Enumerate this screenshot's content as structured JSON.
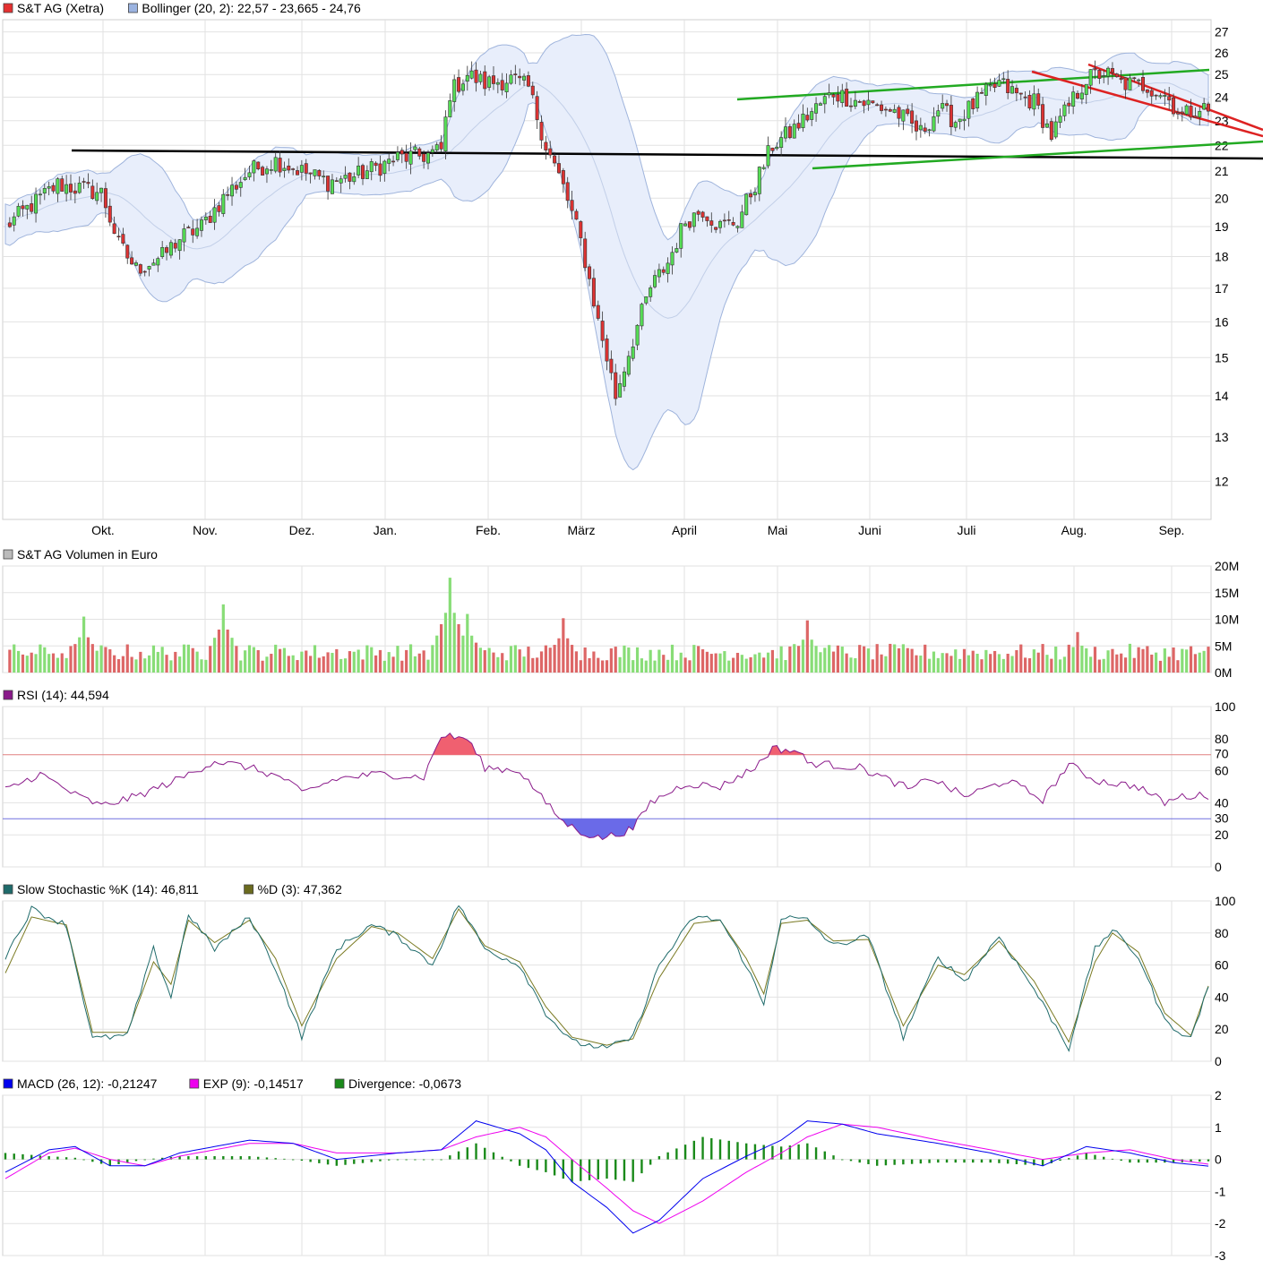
{
  "panels": {
    "price": {
      "legend": [
        {
          "color": "#e53030",
          "text": "S&T AG (Xetra)"
        },
        {
          "color": "#9bb3e0",
          "text": "Bollinger (20, 2): 22,57 - 23,665 - 24,76"
        }
      ],
      "y_ticks": [
        "27",
        "26",
        "25",
        "24",
        "23",
        "22",
        "21",
        "20",
        "19",
        "18",
        "17",
        "16",
        "15",
        "14",
        "13",
        "12"
      ],
      "x_ticks": [
        "Okt.",
        "Nov.",
        "Dez.",
        "Jan.",
        "Feb.",
        "März",
        "April",
        "Mai",
        "Juni",
        "Juli",
        "Aug.",
        "Sep."
      ]
    },
    "volume": {
      "legend": [
        {
          "color": "#bbbbbb",
          "text": "S&T AG Volumen in Euro"
        }
      ],
      "y_ticks": [
        "20M",
        "15M",
        "10M",
        "5M",
        "0M"
      ]
    },
    "rsi": {
      "legend": [
        {
          "color": "#8a1a8a",
          "text": "RSI (14): 44,594"
        }
      ],
      "y_ticks": [
        "100",
        "80",
        "60",
        "40",
        "20",
        "0"
      ],
      "ref_labels": [
        "70",
        "30"
      ]
    },
    "stoch": {
      "legend": [
        {
          "color": "#1f6b6b",
          "text": "Slow Stochastic %K (14): 46,811"
        },
        {
          "color": "#6b6b1f",
          "text": "%D (3): 47,362"
        }
      ],
      "y_ticks": [
        "100",
        "80",
        "60",
        "40",
        "20",
        "0"
      ]
    },
    "macd": {
      "legend": [
        {
          "color": "#0000ee",
          "text": "MACD (26, 12): -0,21247"
        },
        {
          "color": "#ee00ee",
          "text": "EXP (9): -0,14517"
        },
        {
          "color": "#1a8a1a",
          "text": "Divergence: -0,0673"
        }
      ],
      "y_ticks": [
        "2",
        "1",
        "0",
        "-1",
        "-2",
        "-3"
      ]
    }
  },
  "chart_data": [
    {
      "type": "candlestick",
      "title": "S&T AG (Xetra)",
      "categories": [
        "Okt.",
        "Nov.",
        "Dez.",
        "Jan.",
        "Feb.",
        "März",
        "April",
        "Mai",
        "Juni",
        "Juli",
        "Aug.",
        "Sep."
      ],
      "close_path": [
        [
          0,
          19.0
        ],
        [
          12,
          20.5
        ],
        [
          22,
          20.2
        ],
        [
          26,
          18.4
        ],
        [
          30,
          17.6
        ],
        [
          36,
          18.0
        ],
        [
          40,
          18.6
        ],
        [
          45,
          19.0
        ],
        [
          50,
          20.0
        ],
        [
          56,
          21.0
        ],
        [
          62,
          21.4
        ],
        [
          68,
          21.0
        ],
        [
          74,
          20.6
        ],
        [
          80,
          20.8
        ],
        [
          86,
          21.2
        ],
        [
          90,
          21.5
        ],
        [
          96,
          21.6
        ],
        [
          100,
          21.8
        ],
        [
          102,
          24.2
        ],
        [
          106,
          25.0
        ],
        [
          110,
          24.6
        ],
        [
          116,
          24.8
        ],
        [
          120,
          24.4
        ],
        [
          124,
          22.0
        ],
        [
          128,
          20.4
        ],
        [
          132,
          18.5
        ],
        [
          136,
          16.0
        ],
        [
          140,
          14.0
        ],
        [
          144,
          15.5
        ],
        [
          148,
          17.0
        ],
        [
          152,
          17.8
        ],
        [
          156,
          19.2
        ],
        [
          160,
          19.6
        ],
        [
          164,
          19.0
        ],
        [
          168,
          19.2
        ],
        [
          172,
          20.5
        ],
        [
          176,
          22.0
        ],
        [
          180,
          22.5
        ],
        [
          184,
          23.2
        ],
        [
          190,
          24.2
        ],
        [
          196,
          23.8
        ],
        [
          204,
          23.4
        ],
        [
          210,
          22.5
        ],
        [
          214,
          23.5
        ],
        [
          218,
          23.0
        ],
        [
          224,
          24.0
        ],
        [
          228,
          24.6
        ],
        [
          232,
          24.1
        ],
        [
          236,
          23.8
        ],
        [
          240,
          22.4
        ],
        [
          244,
          23.6
        ],
        [
          248,
          24.8
        ],
        [
          252,
          25.1
        ],
        [
          256,
          24.6
        ],
        [
          262,
          24.5
        ],
        [
          266,
          24.1
        ],
        [
          270,
          23.2
        ],
        [
          274,
          23.6
        ],
        [
          276,
          23.4
        ]
      ],
      "bollinger": {
        "lower": 22.57,
        "middle": 23.665,
        "upper": 24.76
      },
      "ylim": [
        11.2,
        27.6
      ],
      "scale": "log"
    },
    {
      "type": "bar",
      "title": "S&T AG Volumen in Euro",
      "ylim": [
        0,
        20
      ],
      "unit": "M",
      "spikes": [
        [
          18,
          10.5
        ],
        [
          50,
          12.8
        ],
        [
          102,
          17.8
        ],
        [
          106,
          11.0
        ],
        [
          128,
          10.2
        ],
        [
          184,
          9.8
        ],
        [
          246,
          7.6
        ]
      ]
    },
    {
      "type": "line",
      "title": "RSI (14)",
      "last_value": 44.594,
      "ylim": [
        0,
        100
      ],
      "ref_lines": [
        70,
        30
      ],
      "path": [
        [
          0,
          48
        ],
        [
          8,
          58
        ],
        [
          16,
          45
        ],
        [
          22,
          38
        ],
        [
          30,
          44
        ],
        [
          40,
          55
        ],
        [
          48,
          66
        ],
        [
          56,
          62
        ],
        [
          64,
          55
        ],
        [
          68,
          46
        ],
        [
          76,
          55
        ],
        [
          86,
          58
        ],
        [
          96,
          56
        ],
        [
          100,
          82
        ],
        [
          106,
          80
        ],
        [
          110,
          62
        ],
        [
          118,
          60
        ],
        [
          124,
          40
        ],
        [
          128,
          28
        ],
        [
          132,
          22
        ],
        [
          136,
          18
        ],
        [
          140,
          20
        ],
        [
          144,
          24
        ],
        [
          148,
          40
        ],
        [
          156,
          52
        ],
        [
          164,
          50
        ],
        [
          172,
          62
        ],
        [
          176,
          74
        ],
        [
          182,
          72
        ],
        [
          184,
          65
        ],
        [
          196,
          62
        ],
        [
          208,
          48
        ],
        [
          212,
          56
        ],
        [
          220,
          44
        ],
        [
          230,
          54
        ],
        [
          238,
          42
        ],
        [
          244,
          64
        ],
        [
          250,
          54
        ],
        [
          260,
          50
        ],
        [
          266,
          40
        ],
        [
          270,
          44
        ],
        [
          276,
          44.6
        ]
      ]
    },
    {
      "type": "line",
      "title": "Slow Stochastic",
      "series": [
        {
          "name": "Slow Stochastic %K (14)",
          "last_value": 46.811
        },
        {
          "name": "%D (3)",
          "last_value": 47.362
        }
      ],
      "ylim": [
        0,
        100
      ],
      "path_k": [
        [
          0,
          65
        ],
        [
          6,
          95
        ],
        [
          14,
          85
        ],
        [
          20,
          14
        ],
        [
          28,
          16
        ],
        [
          34,
          70
        ],
        [
          38,
          40
        ],
        [
          42,
          92
        ],
        [
          48,
          70
        ],
        [
          56,
          90
        ],
        [
          62,
          58
        ],
        [
          68,
          15
        ],
        [
          76,
          70
        ],
        [
          84,
          85
        ],
        [
          90,
          78
        ],
        [
          98,
          60
        ],
        [
          104,
          98
        ],
        [
          110,
          70
        ],
        [
          118,
          60
        ],
        [
          124,
          30
        ],
        [
          130,
          12
        ],
        [
          138,
          8
        ],
        [
          144,
          15
        ],
        [
          150,
          60
        ],
        [
          158,
          90
        ],
        [
          164,
          88
        ],
        [
          170,
          60
        ],
        [
          174,
          35
        ],
        [
          178,
          90
        ],
        [
          184,
          88
        ],
        [
          190,
          72
        ],
        [
          198,
          78
        ],
        [
          206,
          15
        ],
        [
          214,
          65
        ],
        [
          220,
          50
        ],
        [
          228,
          78
        ],
        [
          236,
          45
        ],
        [
          244,
          8
        ],
        [
          250,
          70
        ],
        [
          254,
          82
        ],
        [
          260,
          65
        ],
        [
          266,
          25
        ],
        [
          272,
          14
        ],
        [
          276,
          47
        ]
      ],
      "path_d": [
        [
          0,
          55
        ],
        [
          6,
          90
        ],
        [
          14,
          85
        ],
        [
          20,
          18
        ],
        [
          28,
          18
        ],
        [
          34,
          62
        ],
        [
          38,
          48
        ],
        [
          42,
          88
        ],
        [
          48,
          74
        ],
        [
          56,
          88
        ],
        [
          62,
          64
        ],
        [
          68,
          22
        ],
        [
          76,
          64
        ],
        [
          84,
          84
        ],
        [
          90,
          80
        ],
        [
          98,
          64
        ],
        [
          104,
          95
        ],
        [
          110,
          72
        ],
        [
          118,
          62
        ],
        [
          124,
          34
        ],
        [
          130,
          15
        ],
        [
          138,
          10
        ],
        [
          144,
          14
        ],
        [
          150,
          52
        ],
        [
          158,
          86
        ],
        [
          164,
          88
        ],
        [
          170,
          64
        ],
        [
          174,
          42
        ],
        [
          178,
          86
        ],
        [
          184,
          88
        ],
        [
          190,
          75
        ],
        [
          198,
          76
        ],
        [
          206,
          22
        ],
        [
          214,
          60
        ],
        [
          220,
          54
        ],
        [
          228,
          75
        ],
        [
          236,
          50
        ],
        [
          244,
          12
        ],
        [
          250,
          62
        ],
        [
          254,
          80
        ],
        [
          260,
          68
        ],
        [
          266,
          30
        ],
        [
          272,
          16
        ],
        [
          276,
          47
        ]
      ]
    },
    {
      "type": "line",
      "title": "MACD",
      "series": [
        {
          "name": "MACD (26, 12)",
          "last_value": -0.21247
        },
        {
          "name": "EXP (9)",
          "last_value": -0.14517
        },
        {
          "name": "Divergence",
          "last_value": -0.0673
        }
      ],
      "ylim": [
        -3,
        2
      ],
      "path_macd": [
        [
          0,
          -0.4
        ],
        [
          10,
          0.3
        ],
        [
          16,
          0.4
        ],
        [
          24,
          -0.2
        ],
        [
          32,
          -0.2
        ],
        [
          40,
          0.2
        ],
        [
          56,
          0.6
        ],
        [
          66,
          0.5
        ],
        [
          76,
          0.0
        ],
        [
          90,
          0.2
        ],
        [
          100,
          0.3
        ],
        [
          108,
          1.2
        ],
        [
          118,
          0.8
        ],
        [
          124,
          0.3
        ],
        [
          130,
          -0.7
        ],
        [
          138,
          -1.5
        ],
        [
          144,
          -2.3
        ],
        [
          150,
          -1.9
        ],
        [
          160,
          -0.6
        ],
        [
          170,
          0.1
        ],
        [
          178,
          0.6
        ],
        [
          184,
          1.2
        ],
        [
          192,
          1.1
        ],
        [
          200,
          0.8
        ],
        [
          214,
          0.5
        ],
        [
          226,
          0.2
        ],
        [
          238,
          -0.2
        ],
        [
          248,
          0.4
        ],
        [
          258,
          0.2
        ],
        [
          268,
          -0.1
        ],
        [
          276,
          -0.21
        ]
      ],
      "path_exp": [
        [
          0,
          -0.6
        ],
        [
          10,
          0.2
        ],
        [
          16,
          0.35
        ],
        [
          24,
          0.0
        ],
        [
          32,
          -0.2
        ],
        [
          40,
          0.1
        ],
        [
          56,
          0.5
        ],
        [
          66,
          0.5
        ],
        [
          76,
          0.2
        ],
        [
          90,
          0.2
        ],
        [
          100,
          0.3
        ],
        [
          108,
          0.7
        ],
        [
          118,
          1.0
        ],
        [
          124,
          0.7
        ],
        [
          130,
          0.0
        ],
        [
          138,
          -0.9
        ],
        [
          144,
          -1.6
        ],
        [
          150,
          -2.0
        ],
        [
          160,
          -1.3
        ],
        [
          170,
          -0.4
        ],
        [
          178,
          0.2
        ],
        [
          184,
          0.7
        ],
        [
          192,
          1.1
        ],
        [
          200,
          1.0
        ],
        [
          214,
          0.6
        ],
        [
          226,
          0.3
        ],
        [
          238,
          0.0
        ],
        [
          248,
          0.2
        ],
        [
          258,
          0.3
        ],
        [
          268,
          0.0
        ],
        [
          276,
          -0.15
        ]
      ]
    }
  ]
}
